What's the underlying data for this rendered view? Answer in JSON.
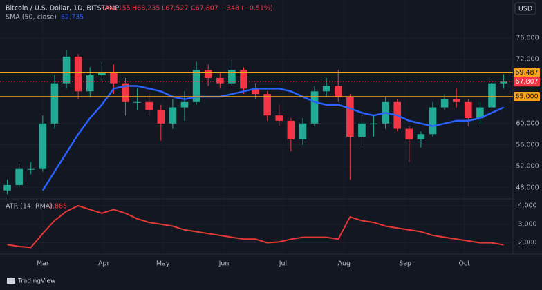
{
  "chart_data": [
    {
      "type": "candlestick",
      "title": "Bitcoin / U.S. Dollar, 1D, BITSTAMP",
      "ohlc_labels": [
        "O68,155",
        "H68,235",
        "L67,527",
        "C67,807",
        "−348 (−0.51%)"
      ],
      "currency": "USD",
      "up_color": "#22ab94",
      "down_color": "#f23645",
      "x": [
        -18,
        -12,
        -6,
        0,
        6,
        12,
        18,
        24,
        30,
        36,
        42,
        48,
        54,
        60,
        66,
        72,
        78,
        84,
        90,
        96,
        102,
        108,
        114,
        120,
        126,
        132,
        138,
        144,
        150,
        156,
        162,
        168,
        174,
        180,
        186,
        192,
        198,
        204,
        210,
        216,
        222,
        228,
        234
      ],
      "open": [
        47500,
        48500,
        51500,
        51500,
        60000,
        67500,
        72500,
        66000,
        69000,
        69500,
        67500,
        64000,
        64000,
        62500,
        60000,
        63000,
        64000,
        70000,
        68500,
        67500,
        70000,
        66500,
        65500,
        61500,
        60500,
        57000,
        60000,
        66000,
        67000,
        65000,
        57500,
        60000,
        60000,
        64000,
        59000,
        57000,
        58000,
        63000,
        64500,
        64000,
        61000,
        63000,
        67500
      ],
      "high": [
        49500,
        52500,
        52800,
        61500,
        69000,
        73800,
        73000,
        70500,
        71500,
        71000,
        68500,
        66500,
        65500,
        63500,
        64500,
        66000,
        71500,
        71000,
        69500,
        71800,
        70500,
        67500,
        66000,
        63500,
        61000,
        61000,
        67000,
        68500,
        70000,
        65500,
        61500,
        61500,
        65000,
        64500,
        59500,
        58500,
        64000,
        65500,
        66500,
        64500,
        64000,
        68500,
        69200
      ],
      "low": [
        46800,
        48000,
        50500,
        51000,
        59000,
        66500,
        64500,
        65000,
        68000,
        65500,
        61500,
        62500,
        61500,
        56800,
        59000,
        60500,
        63500,
        67000,
        66500,
        67000,
        65500,
        64500,
        60500,
        59500,
        54800,
        56000,
        59500,
        65000,
        64000,
        49500,
        56000,
        57500,
        59000,
        58500,
        52800,
        55500,
        57500,
        62500,
        63000,
        59500,
        60000,
        62500,
        66500
      ],
      "close": [
        48500,
        51500,
        51500,
        60000,
        67500,
        72500,
        66000,
        69000,
        69500,
        67500,
        64000,
        64000,
        62500,
        60000,
        63000,
        64000,
        70000,
        68500,
        67500,
        70000,
        66500,
        65500,
        61500,
        60500,
        57000,
        60000,
        66000,
        67000,
        65000,
        57500,
        60000,
        60000,
        64000,
        59000,
        57000,
        58000,
        63000,
        64500,
        64000,
        61000,
        63000,
        67500,
        67807
      ],
      "sma": {
        "name": "SMA (50, close)",
        "value_label": "62,735",
        "color": "#2962ff",
        "values": [
          null,
          null,
          null,
          47500,
          51000,
          54500,
          58000,
          61000,
          63500,
          66500,
          67000,
          67000,
          66500,
          66000,
          65000,
          64500,
          65000,
          65000,
          65000,
          65500,
          66000,
          66500,
          66500,
          66500,
          66000,
          65000,
          64000,
          63500,
          63500,
          62800,
          62000,
          61500,
          62000,
          61500,
          60500,
          60000,
          59500,
          60000,
          60500,
          60500,
          61000,
          62000,
          63000
        ]
      },
      "levels": [
        {
          "value": 69487,
          "label": "69,487"
        },
        {
          "value": 65000,
          "label": "65,000"
        }
      ],
      "level_color": "#f7a21b",
      "last_price": {
        "value": 67807,
        "label": "67,807"
      },
      "xlim": [
        -21,
        238
      ],
      "ylim": [
        46300,
        81000
      ],
      "yticks": [
        {
          "value": 48000,
          "label": "48,000"
        },
        {
          "value": 52000,
          "label": "52,000"
        },
        {
          "value": 56000,
          "label": "56,000"
        },
        {
          "value": 60000,
          "label": "60,000"
        },
        {
          "value": 72000,
          "label": "72,000"
        },
        {
          "value": 76000,
          "label": "76,000"
        }
      ]
    },
    {
      "type": "line",
      "title": "ATR (14, RMA)",
      "value_label": "1,885",
      "color": "#e53935",
      "x": [
        -18,
        -12,
        -6,
        0,
        6,
        12,
        18,
        24,
        30,
        36,
        42,
        48,
        54,
        60,
        66,
        72,
        78,
        84,
        90,
        96,
        102,
        108,
        114,
        120,
        126,
        132,
        138,
        144,
        150,
        156,
        162,
        168,
        174,
        180,
        186,
        192,
        198,
        204,
        210,
        216,
        222,
        228,
        234
      ],
      "values": [
        1900,
        1800,
        1750,
        2500,
        3200,
        3700,
        4000,
        3800,
        3600,
        3800,
        3600,
        3300,
        3100,
        3000,
        2900,
        2700,
        2600,
        2500,
        2400,
        2300,
        2200,
        2200,
        2000,
        2050,
        2200,
        2300,
        2300,
        2300,
        2200,
        3400,
        3200,
        3100,
        2900,
        2800,
        2700,
        2600,
        2400,
        2300,
        2200,
        2100,
        2000,
        2000,
        1885
      ],
      "xlim": [
        -21,
        238
      ],
      "ylim": [
        1500,
        4300
      ],
      "yticks": [
        {
          "value": 2000,
          "label": "2,000"
        },
        {
          "value": 3000,
          "label": "3,000"
        },
        {
          "value": 4000,
          "label": "4,000"
        }
      ],
      "xticks": [
        {
          "value": 0,
          "label": "Mar"
        },
        {
          "value": 31,
          "label": "Apr"
        },
        {
          "value": 61,
          "label": "May"
        },
        {
          "value": 92,
          "label": "Jun"
        },
        {
          "value": 122,
          "label": "Jul"
        },
        {
          "value": 153,
          "label": "Aug"
        },
        {
          "value": 184,
          "label": "Sep"
        },
        {
          "value": 214,
          "label": "Oct"
        }
      ]
    }
  ],
  "footer": {
    "brand": "TradingView"
  }
}
